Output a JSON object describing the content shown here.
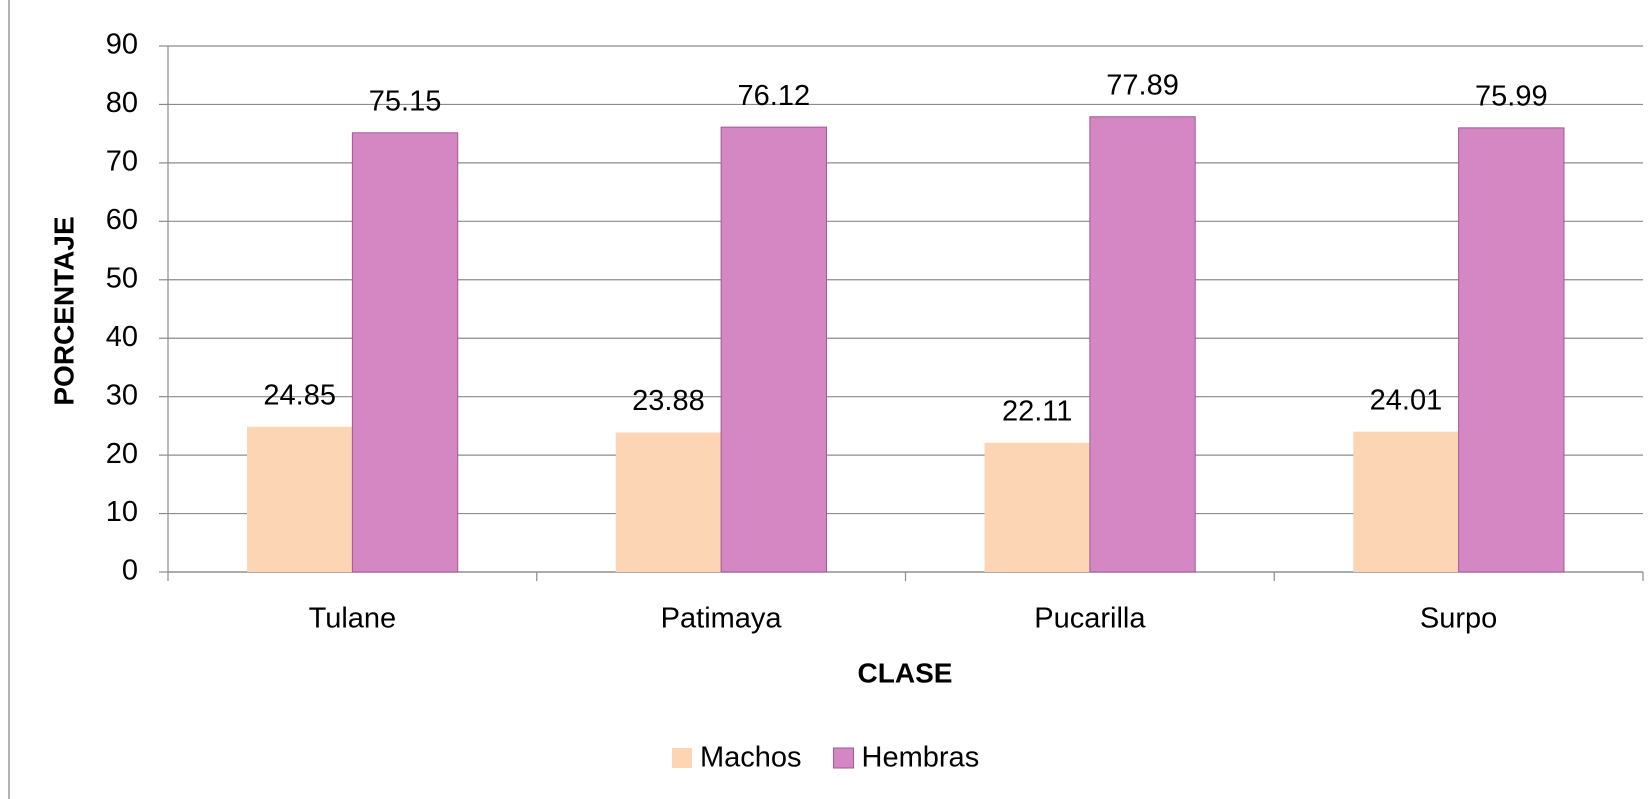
{
  "chart_data": {
    "type": "bar",
    "x_label": "CLASE",
    "y_label": "PORCENTAJE",
    "categories": [
      "Tulane",
      "Patimaya",
      "Pucarilla",
      "Surpo"
    ],
    "series": [
      {
        "name": "Machos",
        "color": "#fcd5b5",
        "values": [
          24.85,
          23.88,
          22.11,
          24.01
        ]
      },
      {
        "name": "Hembras",
        "color": "#d587c4",
        "values": [
          75.15,
          76.12,
          77.89,
          75.99
        ]
      }
    ],
    "ylim": [
      0,
      90
    ],
    "yticks": [
      0,
      10,
      20,
      30,
      40,
      50,
      60,
      70,
      80,
      90
    ],
    "grid": true,
    "legend": "bottom"
  }
}
